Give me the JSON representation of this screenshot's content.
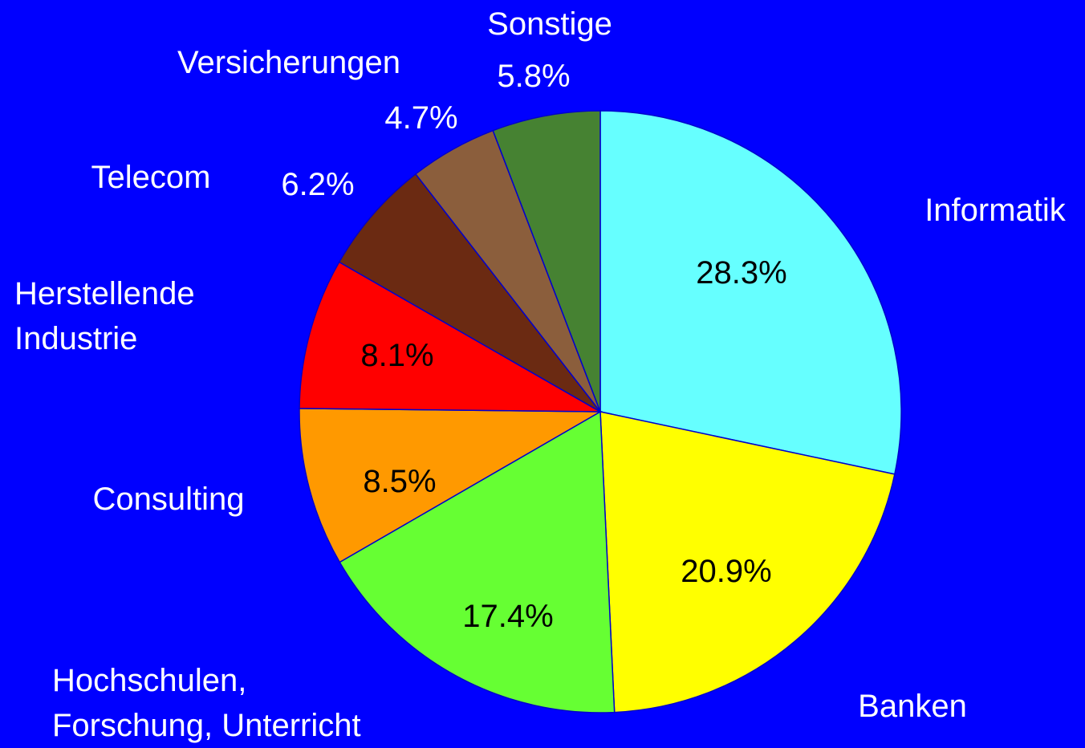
{
  "chart_data": {
    "type": "pie",
    "categories": [
      "Informatik",
      "Banken",
      "Hochschulen,\nForschung, Unterricht",
      "Consulting",
      "Herstellende\nIndustrie",
      "Telecom",
      "Versicherungen",
      "Sonstige"
    ],
    "values": [
      28.3,
      20.9,
      17.4,
      8.5,
      8.1,
      6.2,
      4.7,
      5.8
    ],
    "value_labels": [
      "28.3%",
      "20.9%",
      "17.4%",
      "8.5%",
      "8.1%",
      "6.2%",
      "4.7%",
      "5.8%"
    ],
    "colors": [
      "#66ffff",
      "#ffff00",
      "#66ff33",
      "#ff9900",
      "#ff0000",
      "#6b2a12",
      "#8b5e3c",
      "#468232"
    ]
  }
}
